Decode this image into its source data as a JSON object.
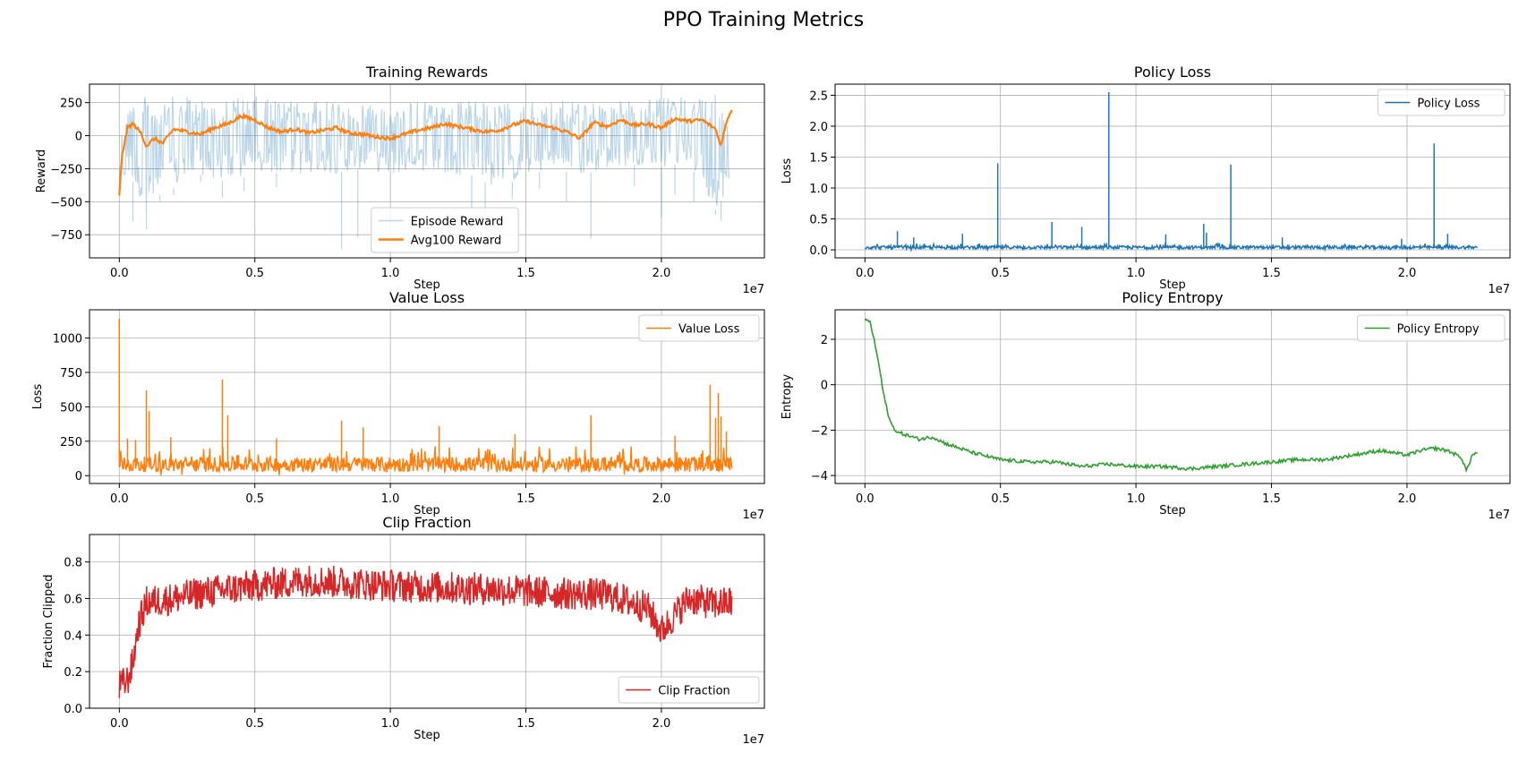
{
  "figure": {
    "title": "PPO Training Metrics"
  },
  "chart_data": [
    {
      "id": "rewards",
      "type": "line",
      "title": "Training Rewards",
      "xlabel": "Step",
      "ylabel": "Reward",
      "x_offset_label": "1e7",
      "xlim": [
        -0.11,
        2.38
      ],
      "ylim": [
        -925,
        390
      ],
      "xticks": [
        0.0,
        0.5,
        1.0,
        1.5,
        2.0
      ],
      "xtick_labels": [
        "0.0",
        "0.5",
        "1.0",
        "1.5",
        "2.0"
      ],
      "yticks": [
        -750,
        -500,
        -250,
        0,
        250
      ],
      "ytick_labels": [
        "−750",
        "−500",
        "−250",
        "0",
        "250"
      ],
      "grid": true,
      "legend": {
        "placement": "lower center",
        "entries": [
          "Episode Reward",
          "Avg100 Reward"
        ]
      },
      "series": [
        {
          "name": "Episode Reward",
          "color": "#1f77b4",
          "opacity": 0.3,
          "kind": "band",
          "x": [
            0.0,
            0.02,
            0.05,
            0.1,
            0.15,
            0.2,
            0.3,
            0.4,
            0.5,
            0.6,
            0.7,
            0.8,
            0.9,
            1.0,
            1.1,
            1.2,
            1.3,
            1.4,
            1.5,
            1.6,
            1.7,
            1.8,
            1.9,
            2.0,
            2.1,
            2.2,
            2.25
          ],
          "upper": [
            120,
            250,
            280,
            300,
            300,
            295,
            290,
            285,
            300,
            270,
            260,
            265,
            255,
            250,
            260,
            270,
            265,
            250,
            255,
            265,
            270,
            260,
            270,
            285,
            300,
            310,
            300
          ],
          "lower": [
            -450,
            -330,
            -350,
            -600,
            -450,
            -400,
            -300,
            -350,
            -300,
            -280,
            -300,
            -280,
            -250,
            -300,
            -260,
            -290,
            -300,
            -400,
            -300,
            -250,
            -300,
            -250,
            -220,
            -240,
            -200,
            -560,
            -400
          ],
          "spikes_x": [
            0.05,
            0.1,
            0.15,
            0.2,
            0.3,
            0.38,
            0.46,
            0.58,
            0.82,
            0.88,
            1.3,
            1.35,
            1.45,
            1.55,
            1.65,
            1.74,
            1.9,
            2.0,
            2.05,
            2.12,
            2.2,
            2.22
          ],
          "spikes_y": [
            -650,
            -710,
            -500,
            -450,
            -350,
            -470,
            -420,
            -390,
            -860,
            -770,
            -550,
            -600,
            -480,
            -400,
            -500,
            -780,
            -380,
            -620,
            -450,
            -500,
            -600,
            -640
          ]
        },
        {
          "name": "Avg100 Reward",
          "color": "#ff7f0e",
          "kind": "line",
          "x": [
            0.0,
            0.01,
            0.03,
            0.05,
            0.08,
            0.1,
            0.13,
            0.16,
            0.2,
            0.25,
            0.3,
            0.35,
            0.4,
            0.45,
            0.5,
            0.55,
            0.6,
            0.65,
            0.7,
            0.75,
            0.8,
            0.85,
            0.9,
            0.95,
            1.0,
            1.05,
            1.1,
            1.15,
            1.2,
            1.25,
            1.3,
            1.35,
            1.4,
            1.45,
            1.5,
            1.55,
            1.6,
            1.65,
            1.7,
            1.75,
            1.8,
            1.85,
            1.9,
            1.95,
            2.0,
            2.05,
            2.1,
            2.15,
            2.2,
            2.22,
            2.24,
            2.26
          ],
          "y": [
            -460,
            -150,
            60,
            90,
            20,
            -80,
            -20,
            -60,
            50,
            30,
            10,
            60,
            90,
            150,
            120,
            60,
            30,
            50,
            20,
            40,
            60,
            20,
            10,
            -10,
            -20,
            10,
            40,
            60,
            90,
            70,
            50,
            30,
            40,
            80,
            110,
            80,
            60,
            30,
            -20,
            100,
            70,
            120,
            80,
            90,
            60,
            130,
            110,
            120,
            50,
            -80,
            110,
            200
          ]
        }
      ]
    },
    {
      "id": "policy_loss",
      "type": "line",
      "title": "Policy Loss",
      "xlabel": "Step",
      "ylabel": "Loss",
      "x_offset_label": "1e7",
      "xlim": [
        -0.11,
        2.38
      ],
      "ylim": [
        -0.13,
        2.68
      ],
      "xticks": [
        0.0,
        0.5,
        1.0,
        1.5,
        2.0
      ],
      "xtick_labels": [
        "0.0",
        "0.5",
        "1.0",
        "1.5",
        "2.0"
      ],
      "yticks": [
        0.0,
        0.5,
        1.0,
        1.5,
        2.0,
        2.5
      ],
      "ytick_labels": [
        "0.0",
        "0.5",
        "1.0",
        "1.5",
        "2.0",
        "2.5"
      ],
      "grid": true,
      "legend": {
        "placement": "upper right",
        "entries": [
          "Policy Loss"
        ]
      },
      "series": [
        {
          "name": "Policy Loss",
          "color": "#1f77b4",
          "kind": "noisy_base",
          "base": 0.03,
          "noise": 0.05,
          "x_range": [
            0.0,
            2.26
          ],
          "spikes_x": [
            0.12,
            0.18,
            0.36,
            0.49,
            0.69,
            0.8,
            0.9,
            1.11,
            1.25,
            1.26,
            1.35,
            1.54,
            1.98,
            2.1,
            2.15
          ],
          "spikes_y": [
            0.3,
            0.2,
            0.26,
            1.4,
            0.45,
            0.37,
            2.55,
            0.25,
            0.42,
            0.28,
            1.38,
            0.2,
            0.18,
            1.72,
            0.26
          ]
        }
      ]
    },
    {
      "id": "value_loss",
      "type": "line",
      "title": "Value Loss",
      "xlabel": "Step",
      "ylabel": "Loss",
      "x_offset_label": "1e7",
      "xlim": [
        -0.11,
        2.38
      ],
      "ylim": [
        -57,
        1205
      ],
      "xticks": [
        0.0,
        0.5,
        1.0,
        1.5,
        2.0
      ],
      "xtick_labels": [
        "0.0",
        "0.5",
        "1.0",
        "1.5",
        "2.0"
      ],
      "yticks": [
        0,
        250,
        500,
        750,
        1000
      ],
      "ytick_labels": [
        "0",
        "250",
        "500",
        "750",
        "1000"
      ],
      "grid": true,
      "legend": {
        "placement": "upper right",
        "entries": [
          "Value Loss"
        ]
      },
      "series": [
        {
          "name": "Value Loss",
          "color": "#ff7f0e",
          "kind": "noisy_base",
          "base": 60,
          "noise": 110,
          "x_range": [
            0.0,
            2.26
          ],
          "spikes_x": [
            0.0,
            0.03,
            0.06,
            0.1,
            0.11,
            0.19,
            0.38,
            0.4,
            0.58,
            0.82,
            0.9,
            1.18,
            1.46,
            1.74,
            2.05,
            2.18,
            2.2,
            2.21,
            2.22,
            2.24
          ],
          "spikes_y": [
            1140,
            270,
            260,
            620,
            470,
            280,
            700,
            440,
            270,
            400,
            350,
            360,
            300,
            440,
            290,
            660,
            420,
            600,
            430,
            320
          ]
        }
      ]
    },
    {
      "id": "policy_entropy",
      "type": "line",
      "title": "Policy Entropy",
      "xlabel": "Step",
      "ylabel": "Entropy",
      "x_offset_label": "1e7",
      "xlim": [
        -0.11,
        2.38
      ],
      "ylim": [
        -4.35,
        3.3
      ],
      "xticks": [
        0.0,
        0.5,
        1.0,
        1.5,
        2.0
      ],
      "xtick_labels": [
        "0.0",
        "0.5",
        "1.0",
        "1.5",
        "2.0"
      ],
      "yticks": [
        -4,
        -2,
        0,
        2
      ],
      "ytick_labels": [
        "−4",
        "−2",
        "0",
        "2"
      ],
      "grid": true,
      "legend": {
        "placement": "upper right",
        "entries": [
          "Policy Entropy"
        ]
      },
      "series": [
        {
          "name": "Policy Entropy",
          "color": "#2ca02c",
          "kind": "line",
          "x": [
            0.0,
            0.01,
            0.02,
            0.03,
            0.05,
            0.07,
            0.09,
            0.1,
            0.12,
            0.15,
            0.2,
            0.25,
            0.3,
            0.35,
            0.4,
            0.5,
            0.6,
            0.7,
            0.8,
            0.9,
            1.0,
            1.1,
            1.2,
            1.3,
            1.4,
            1.5,
            1.6,
            1.7,
            1.8,
            1.9,
            2.0,
            2.05,
            2.1,
            2.15,
            2.2,
            2.22,
            2.24,
            2.26
          ],
          "y": [
            2.8,
            2.9,
            2.7,
            2.2,
            1.0,
            -0.5,
            -1.5,
            -1.8,
            -2.1,
            -2.2,
            -2.4,
            -2.3,
            -2.6,
            -2.8,
            -3.0,
            -3.3,
            -3.4,
            -3.4,
            -3.6,
            -3.5,
            -3.6,
            -3.6,
            -3.7,
            -3.6,
            -3.5,
            -3.4,
            -3.3,
            -3.3,
            -3.1,
            -2.9,
            -3.1,
            -2.9,
            -2.8,
            -2.9,
            -3.2,
            -3.8,
            -3.1,
            -3.0
          ]
        }
      ]
    },
    {
      "id": "clip_fraction",
      "type": "line",
      "title": "Clip Fraction",
      "xlabel": "Step",
      "ylabel": "Fraction Clipped",
      "x_offset_label": "1e7",
      "xlim": [
        -0.11,
        2.38
      ],
      "ylim": [
        0.0,
        0.95
      ],
      "xticks": [
        0.0,
        0.5,
        1.0,
        1.5,
        2.0
      ],
      "xtick_labels": [
        "0.0",
        "0.5",
        "1.0",
        "1.5",
        "2.0"
      ],
      "yticks": [
        0.0,
        0.2,
        0.4,
        0.6,
        0.8
      ],
      "ytick_labels": [
        "0.0",
        "0.2",
        "0.4",
        "0.6",
        "0.8"
      ],
      "grid": true,
      "legend": {
        "placement": "lower right",
        "entries": [
          "Clip Fraction"
        ]
      },
      "series": [
        {
          "name": "Clip Fraction",
          "color": "#d62728",
          "kind": "noisy_trend",
          "noise": 0.09,
          "x": [
            0.0,
            0.03,
            0.05,
            0.07,
            0.1,
            0.2,
            0.3,
            0.5,
            0.7,
            0.9,
            1.0,
            1.2,
            1.4,
            1.6,
            1.8,
            1.95,
            2.0,
            2.1,
            2.2,
            2.26
          ],
          "y": [
            0.12,
            0.15,
            0.25,
            0.45,
            0.58,
            0.6,
            0.63,
            0.67,
            0.7,
            0.68,
            0.67,
            0.66,
            0.65,
            0.63,
            0.62,
            0.55,
            0.42,
            0.6,
            0.57,
            0.58
          ]
        }
      ]
    }
  ]
}
